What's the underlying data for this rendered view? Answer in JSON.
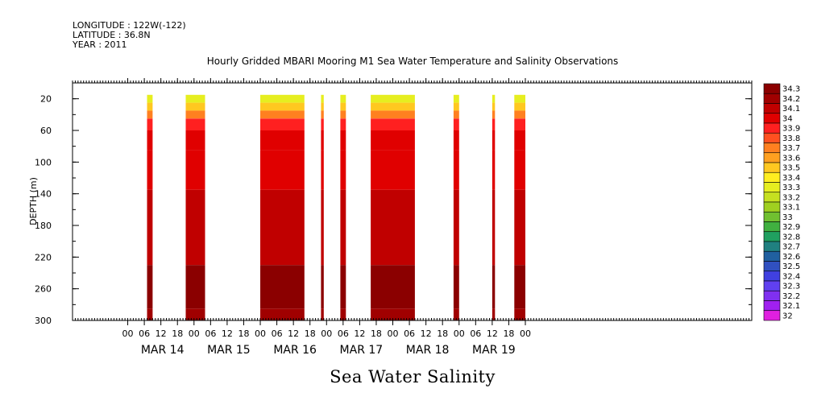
{
  "header": {
    "longitude": "LONGITUDE : 122W(-122)",
    "latitude": "LATITUDE : 36.8N",
    "year": "YEAR : 2011"
  },
  "chart_data": {
    "type": "heatmap",
    "title": "Hourly Gridded MBARI Mooring M1 Sea Water Temperature and Salinity Observations",
    "variable": "Sea Water Salinity",
    "ylabel": "DEPTH (m)",
    "ylim": [
      300,
      0
    ],
    "yticks": [
      20,
      60,
      100,
      140,
      180,
      220,
      260,
      300
    ],
    "xlim_hours": [
      -20,
      226
    ],
    "x_hour_ticks": [
      "00",
      "06",
      "12",
      "18",
      "00",
      "06",
      "12",
      "18",
      "00",
      "06",
      "12",
      "18",
      "00",
      "06",
      "12",
      "18",
      "00",
      "06",
      "12",
      "18",
      "00",
      "06",
      "12",
      "18",
      "00"
    ],
    "x_hour_tick_values": [
      0,
      6,
      12,
      18,
      24,
      30,
      36,
      42,
      48,
      54,
      60,
      66,
      72,
      78,
      84,
      90,
      96,
      102,
      108,
      114,
      120,
      126,
      132,
      138,
      144
    ],
    "date_labels": [
      "MAR 14",
      "MAR 15",
      "MAR 16",
      "MAR 17",
      "MAR 18",
      "MAR 19"
    ],
    "date_label_hours": [
      12,
      36,
      60,
      84,
      108,
      132
    ],
    "colorbar": {
      "levels": [
        "34.3",
        "34.2",
        "34.1",
        "34",
        "33.9",
        "33.8",
        "33.7",
        "33.6",
        "33.5",
        "33.4",
        "33.3",
        "33.2",
        "33.1",
        "33",
        "32.9",
        "32.8",
        "32.7",
        "32.6",
        "32.5",
        "32.4",
        "32.3",
        "32.2",
        "32.1",
        "32"
      ],
      "colors": [
        "#8b0000",
        "#a00000",
        "#c00000",
        "#e00000",
        "#ff2020",
        "#ff5020",
        "#ff8020",
        "#ffa020",
        "#ffc820",
        "#ffee20",
        "#e6ee20",
        "#c6e020",
        "#a0d020",
        "#70c030",
        "#40b040",
        "#20a060",
        "#208080",
        "#2060a0",
        "#3050c0",
        "#4040e0",
        "#6040f0",
        "#8030f0",
        "#a020f0",
        "#e020e0"
      ]
    },
    "data_segments_hours": [
      [
        7,
        9
      ],
      [
        21,
        28
      ],
      [
        48,
        64
      ],
      [
        70,
        71
      ],
      [
        77,
        79
      ],
      [
        88,
        104
      ],
      [
        118,
        120
      ],
      [
        132,
        133
      ],
      [
        140,
        144
      ]
    ],
    "depth_bands": [
      {
        "top": 15,
        "bottom": 25,
        "salinity": 33.3
      },
      {
        "top": 25,
        "bottom": 35,
        "salinity": 33.5
      },
      {
        "top": 35,
        "bottom": 45,
        "salinity": 33.7
      },
      {
        "top": 45,
        "bottom": 60,
        "salinity": 33.9
      },
      {
        "top": 60,
        "bottom": 85,
        "salinity": 34.0
      },
      {
        "top": 85,
        "bottom": 135,
        "salinity": 34.05
      },
      {
        "top": 135,
        "bottom": 230,
        "salinity": 34.15
      },
      {
        "top": 230,
        "bottom": 285,
        "salinity": 34.25
      },
      {
        "top": 285,
        "bottom": 300,
        "salinity": 34.2
      }
    ]
  }
}
